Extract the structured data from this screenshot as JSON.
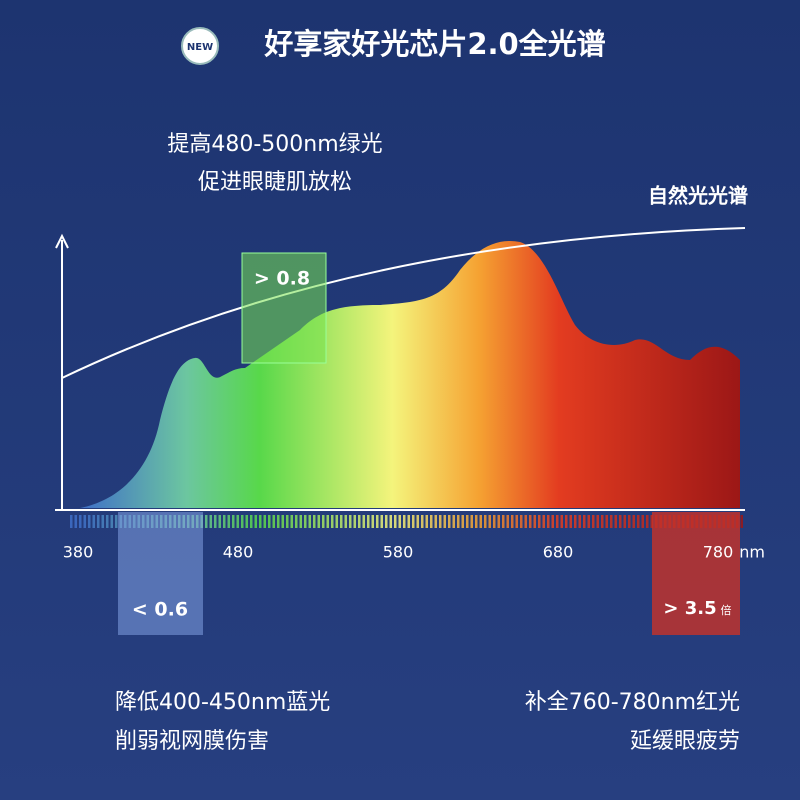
{
  "badge": "NEW",
  "title": "好享家好光芯片2.0全光谱",
  "natural_label": "自然光光谱",
  "axis": {
    "ticks": [
      "380",
      "480",
      "580",
      "680",
      "780"
    ],
    "unit": "nm"
  },
  "callouts": [
    {
      "value": "> 0.8",
      "lines": [
        "提高480-500nm绿光",
        "促进眼睫肌放松"
      ]
    },
    {
      "value": "< 0.6",
      "lines": [
        "降低400-450nm蓝光",
        "削弱视网膜伤害"
      ]
    },
    {
      "value": "> 3.5",
      "suffix": "倍",
      "lines": [
        "补全760-780nm红光",
        "延缓眼疲劳"
      ]
    }
  ]
}
